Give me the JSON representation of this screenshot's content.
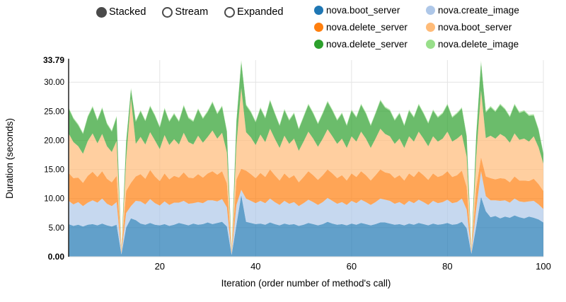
{
  "controls": {
    "items": [
      {
        "label": "Stacked",
        "selected": true
      },
      {
        "label": "Stream",
        "selected": false
      },
      {
        "label": "Expanded",
        "selected": false
      }
    ]
  },
  "legend": {
    "items": [
      {
        "label": "nova.boot_server",
        "color": "#1f77b4"
      },
      {
        "label": "nova.create_image",
        "color": "#aec7e8"
      },
      {
        "label": "nova.delete_server",
        "color": "#ff7f0e"
      },
      {
        "label": "nova.boot_server",
        "color": "#ffbb78"
      },
      {
        "label": "nova.delete_server",
        "color": "#2ca02c"
      },
      {
        "label": "nova.delete_image",
        "color": "#98df8a"
      }
    ]
  },
  "chart_data": {
    "type": "area",
    "stacked": true,
    "title": "",
    "xlabel": "Iteration (order number of method's call)",
    "ylabel": "Duration (seconds)",
    "xlim": [
      1,
      100
    ],
    "ylim": [
      0,
      33.79
    ],
    "grid": true,
    "legend_position": "top-right",
    "fill_opacity": 0.7,
    "x_ticks": [
      20,
      40,
      60,
      80,
      100
    ],
    "y_ticks": [
      {
        "v": 0,
        "label": "0.00",
        "bold": true,
        "grid": false
      },
      {
        "v": 5,
        "label": "5.00",
        "grid": true
      },
      {
        "v": 10,
        "label": "10.00",
        "grid": true
      },
      {
        "v": 15,
        "label": "15.00",
        "grid": true
      },
      {
        "v": 20,
        "label": "20.00",
        "grid": true
      },
      {
        "v": 25,
        "label": "25.00",
        "grid": true
      },
      {
        "v": 30,
        "label": "30.00",
        "grid": true
      },
      {
        "v": 33.79,
        "label": "33.79",
        "bold": true,
        "grid": false
      }
    ],
    "series": [
      {
        "name": "nova.boot_server",
        "color": "#1f77b4",
        "values": [
          5.6,
          5.3,
          5.5,
          5.2,
          5.5,
          5.6,
          5.4,
          5.7,
          5.4,
          5.2,
          5.5,
          0.4,
          5.0,
          6.6,
          6.3,
          5.7,
          5.5,
          5.8,
          5.5,
          5.4,
          5.6,
          5.3,
          5.5,
          5.8,
          5.6,
          5.4,
          5.7,
          5.5,
          5.6,
          5.9,
          5.6,
          5.8,
          6.0,
          5.2,
          0.3,
          5.5,
          10.6,
          6.0,
          5.8,
          5.6,
          5.7,
          5.5,
          5.9,
          5.6,
          5.4,
          5.7,
          5.5,
          5.6,
          5.3,
          5.5,
          5.8,
          5.6,
          5.4,
          5.6,
          6.0,
          5.7,
          5.5,
          5.6,
          5.4,
          5.7,
          5.5,
          5.8,
          5.6,
          5.4,
          5.6,
          5.9,
          5.9,
          5.7,
          5.5,
          5.6,
          5.4,
          5.7,
          5.5,
          5.8,
          5.6,
          5.4,
          5.7,
          5.5,
          5.6,
          5.8,
          5.5,
          5.6,
          6.0,
          4.9,
          0.5,
          5.2,
          10.3,
          7.8,
          6.8,
          7.0,
          6.6,
          6.9,
          6.7,
          7.1,
          6.8,
          6.6,
          6.9,
          6.7,
          6.4,
          5.9
        ]
      },
      {
        "name": "nova.create_image",
        "color": "#aec7e8",
        "values": [
          4.0,
          3.7,
          3.9,
          3.5,
          3.8,
          4.1,
          3.9,
          4.3,
          3.7,
          3.5,
          3.9,
          0.2,
          2.5,
          2.1,
          3.3,
          3.8,
          3.5,
          4.1,
          3.7,
          3.4,
          3.9,
          3.6,
          3.8,
          3.5,
          4.0,
          3.7,
          3.5,
          3.9,
          3.6,
          3.8,
          4.1,
          3.7,
          3.9,
          3.3,
          0.2,
          3.4,
          0.9,
          4.0,
          3.8,
          3.6,
          3.9,
          3.7,
          4.1,
          3.8,
          3.5,
          3.9,
          3.6,
          3.8,
          3.4,
          3.7,
          4.0,
          3.8,
          3.5,
          3.8,
          4.1,
          3.9,
          3.6,
          3.8,
          3.5,
          3.9,
          3.7,
          4.0,
          3.8,
          3.5,
          3.8,
          4.1,
          3.9,
          3.9,
          3.6,
          3.8,
          3.5,
          3.9,
          3.7,
          4.0,
          3.8,
          3.5,
          3.9,
          3.7,
          3.8,
          4.0,
          3.7,
          3.8,
          4.0,
          3.2,
          0.2,
          3.0,
          4.4,
          2.6,
          2.9,
          2.7,
          3.0,
          2.8,
          2.6,
          2.9,
          2.7,
          2.8,
          2.6,
          2.9,
          2.6,
          2.3
        ]
      },
      {
        "name": "nova.delete_server",
        "color": "#ff7f0e",
        "values": [
          4.8,
          4.5,
          4.2,
          4.0,
          4.6,
          4.9,
          4.4,
          4.7,
          4.3,
          4.1,
          4.5,
          0.2,
          3.8,
          4.0,
          4.2,
          4.7,
          4.4,
          5.0,
          4.6,
          4.2,
          4.8,
          4.4,
          4.6,
          4.3,
          4.9,
          4.5,
          4.3,
          4.8,
          4.4,
          4.6,
          5.0,
          4.6,
          4.8,
          4.1,
          0.2,
          4.4,
          3.6,
          4.8,
          4.6,
          4.3,
          4.8,
          4.5,
          5.0,
          4.6,
          4.2,
          4.7,
          4.4,
          4.6,
          4.1,
          4.5,
          4.9,
          4.6,
          4.3,
          4.6,
          4.9,
          4.7,
          4.4,
          4.6,
          4.2,
          4.7,
          4.5,
          4.9,
          4.6,
          4.2,
          4.6,
          5.0,
          4.7,
          4.7,
          4.4,
          4.6,
          4.2,
          4.7,
          4.5,
          4.9,
          4.6,
          4.3,
          4.7,
          4.5,
          4.6,
          4.9,
          4.5,
          4.6,
          4.8,
          3.9,
          0.2,
          3.6,
          2.4,
          3.4,
          3.8,
          3.6,
          3.9,
          3.7,
          3.5,
          3.8,
          3.6,
          3.7,
          3.5,
          3.8,
          3.5,
          3.1
        ]
      },
      {
        "name": "nova.boot_server",
        "color": "#ffbb78",
        "values": [
          6.8,
          6.2,
          5.4,
          5.0,
          6.0,
          6.6,
          5.8,
          6.4,
          5.6,
          5.2,
          6.0,
          0.3,
          5.4,
          14.5,
          5.6,
          6.4,
          5.9,
          6.5,
          6.2,
          5.5,
          6.6,
          5.9,
          6.3,
          5.7,
          6.8,
          6.1,
          5.8,
          6.6,
          6.0,
          6.3,
          7.0,
          6.2,
          6.6,
          5.3,
          0.3,
          6.0,
          13.9,
          6.6,
          6.3,
          5.7,
          6.6,
          6.0,
          7.0,
          6.3,
          5.6,
          6.5,
          5.9,
          6.3,
          5.4,
          6.1,
          6.8,
          6.3,
          5.7,
          6.3,
          6.9,
          6.4,
          5.9,
          6.3,
          5.6,
          6.4,
          6.1,
          6.8,
          6.3,
          5.6,
          6.3,
          7.0,
          6.6,
          6.4,
          5.9,
          6.3,
          5.6,
          6.4,
          6.1,
          6.8,
          6.3,
          5.8,
          6.4,
          6.1,
          6.3,
          6.8,
          6.1,
          6.3,
          6.2,
          5.2,
          0.3,
          5.4,
          11.5,
          6.6,
          7.3,
          7.0,
          7.6,
          7.2,
          6.8,
          7.4,
          7.0,
          7.2,
          6.8,
          7.3,
          6.3,
          4.7
        ]
      },
      {
        "name": "nova.delete_server",
        "color": "#2ca02c",
        "values": [
          4.3,
          4.0,
          3.6,
          3.4,
          4.1,
          4.5,
          3.9,
          4.4,
          3.8,
          3.5,
          4.1,
          0.2,
          3.0,
          1.6,
          3.8,
          4.4,
          4.0,
          4.4,
          4.2,
          3.7,
          4.5,
          4.0,
          4.3,
          3.9,
          4.6,
          4.1,
          3.9,
          4.5,
          4.1,
          4.3,
          4.8,
          4.2,
          4.5,
          3.6,
          0.2,
          4.0,
          4.5,
          4.6,
          4.3,
          3.9,
          4.5,
          4.1,
          4.8,
          4.3,
          3.8,
          4.4,
          4.0,
          4.3,
          3.7,
          4.2,
          4.6,
          4.3,
          3.9,
          4.3,
          4.7,
          4.4,
          4.0,
          4.3,
          3.8,
          4.4,
          4.1,
          4.6,
          4.3,
          3.8,
          4.3,
          4.8,
          4.5,
          4.4,
          4.0,
          4.3,
          3.8,
          4.4,
          4.1,
          4.6,
          4.3,
          3.9,
          4.4,
          4.1,
          4.3,
          4.6,
          4.1,
          4.3,
          4.5,
          3.5,
          0.2,
          3.7,
          4.8,
          4.4,
          4.9,
          4.6,
          5.0,
          4.7,
          4.4,
          4.9,
          4.6,
          4.7,
          4.4,
          3.6,
          3.0,
          1.7
        ]
      },
      {
        "name": "nova.delete_image",
        "color": "#98df8a",
        "values": [
          0.2,
          0.2,
          0.2,
          0.2,
          0.2,
          0.2,
          0.2,
          0.2,
          0.2,
          0.2,
          0.2,
          0.05,
          0.2,
          0.2,
          0.2,
          0.2,
          0.2,
          0.2,
          0.2,
          0.2,
          0.2,
          0.2,
          0.2,
          0.2,
          0.2,
          0.2,
          0.2,
          0.2,
          0.2,
          0.2,
          0.2,
          0.2,
          0.2,
          0.2,
          0.05,
          0.2,
          0.29,
          0.2,
          0.2,
          0.2,
          0.2,
          0.2,
          0.2,
          0.2,
          0.2,
          0.2,
          0.2,
          0.2,
          0.2,
          0.2,
          0.2,
          0.2,
          0.2,
          0.2,
          0.2,
          0.2,
          0.2,
          0.2,
          0.2,
          0.2,
          0.2,
          0.2,
          0.2,
          0.2,
          0.2,
          0.2,
          0.2,
          0.2,
          0.2,
          0.2,
          0.2,
          0.2,
          0.2,
          0.2,
          0.2,
          0.2,
          0.2,
          0.2,
          0.2,
          0.2,
          0.2,
          0.2,
          0.2,
          0.2,
          0.05,
          0.2,
          0.3,
          0.2,
          0.2,
          0.2,
          0.2,
          0.2,
          0.2,
          0.2,
          0.2,
          0.2,
          0.2,
          0.2,
          0.2,
          0.2
        ]
      }
    ]
  }
}
